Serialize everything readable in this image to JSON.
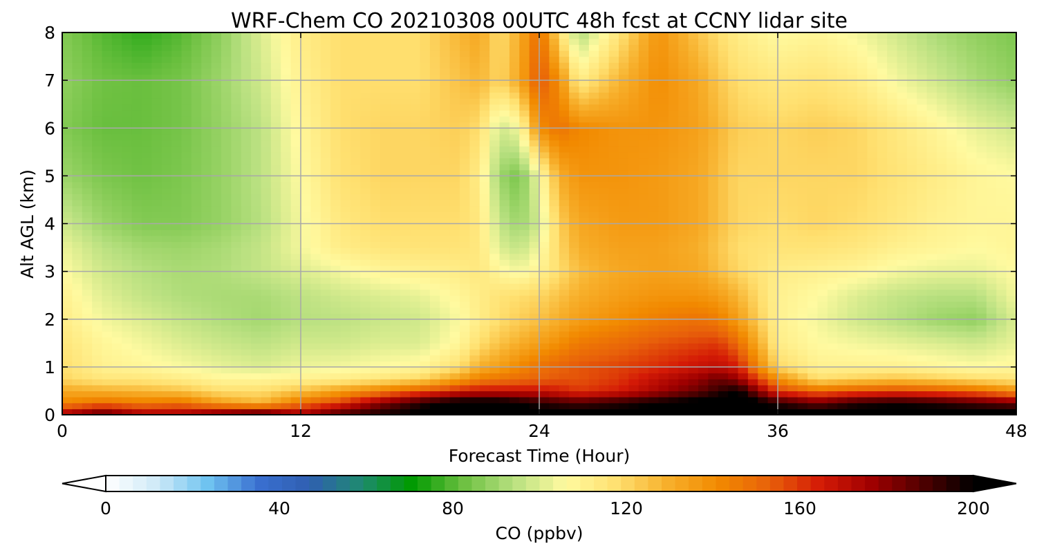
{
  "chart_data": {
    "type": "heatmap",
    "title": "WRF-Chem CO  20210308 00UTC 48h fcst at CCNY lidar site",
    "xlabel": "Forecast Time (Hour)",
    "ylabel": "Alt AGL (km)",
    "xlim": [
      0,
      48
    ],
    "ylim": [
      0,
      8
    ],
    "x_ticks": [
      "0",
      "12",
      "24",
      "36",
      "48"
    ],
    "y_ticks": [
      "0",
      "1",
      "2",
      "3",
      "4",
      "5",
      "6",
      "7",
      "8"
    ],
    "grid": true,
    "colorbar": {
      "label": "CO  (ppbv)",
      "range": [
        0,
        200
      ],
      "ticks": [
        "0",
        "40",
        "80",
        "120",
        "160",
        "200"
      ],
      "extend": "both",
      "colormap": [
        "#ffffff",
        "#cfeaf7",
        "#6ec3f0",
        "#3a6fd0",
        "#2f5fb0",
        "#1f8a70",
        "#009a00",
        "#6cc040",
        "#b8e080",
        "#fffaa0",
        "#ffe070",
        "#f7b02c",
        "#f28a00",
        "#e8610a",
        "#d41a06",
        "#a00000",
        "#500000",
        "#000000"
      ]
    },
    "x": [
      0,
      2,
      4,
      6,
      8,
      10,
      12,
      14,
      16,
      18,
      20,
      21,
      22,
      23,
      24,
      25,
      26,
      28,
      30,
      32,
      33,
      34,
      36,
      38,
      40,
      42,
      44,
      46,
      48
    ],
    "y": [
      0,
      0.25,
      0.5,
      0.75,
      1,
      1.5,
      2,
      2.5,
      3,
      3.5,
      4,
      5,
      6,
      7,
      8
    ],
    "values": [
      [
        178,
        192,
        178,
        178,
        190,
        198,
        178,
        192,
        198,
        202,
        210,
        212,
        210,
        205,
        205,
        205,
        205,
        202,
        205,
        205,
        210,
        210,
        205,
        205,
        205,
        205,
        205,
        205,
        205
      ],
      [
        142,
        148,
        145,
        148,
        135,
        128,
        148,
        160,
        180,
        195,
        205,
        205,
        205,
        200,
        195,
        192,
        190,
        195,
        200,
        205,
        210,
        210,
        195,
        185,
        195,
        198,
        195,
        190,
        185
      ],
      [
        132,
        130,
        128,
        125,
        118,
        118,
        125,
        135,
        145,
        155,
        165,
        168,
        168,
        168,
        168,
        165,
        160,
        165,
        175,
        185,
        192,
        200,
        160,
        150,
        155,
        158,
        155,
        150,
        140
      ],
      [
        120,
        115,
        115,
        112,
        108,
        108,
        110,
        112,
        115,
        120,
        135,
        145,
        148,
        150,
        152,
        155,
        155,
        160,
        170,
        178,
        185,
        178,
        140,
        118,
        122,
        125,
        122,
        118,
        115
      ],
      [
        118,
        110,
        108,
        105,
        102,
        100,
        103,
        104,
        106,
        108,
        118,
        130,
        135,
        142,
        148,
        152,
        155,
        158,
        162,
        168,
        170,
        165,
        120,
        110,
        110,
        110,
        108,
        106,
        108
      ],
      [
        115,
        108,
        104,
        100,
        97,
        95,
        98,
        98,
        100,
        100,
        108,
        118,
        125,
        130,
        135,
        140,
        146,
        150,
        155,
        158,
        160,
        150,
        112,
        106,
        104,
        102,
        100,
        98,
        102
      ],
      [
        112,
        104,
        100,
        96,
        93,
        91,
        94,
        95,
        97,
        98,
        105,
        112,
        118,
        122,
        125,
        130,
        135,
        140,
        145,
        148,
        145,
        135,
        110,
        104,
        98,
        94,
        90,
        88,
        100
      ],
      [
        110,
        101,
        96,
        93,
        92,
        92,
        95,
        98,
        100,
        102,
        108,
        112,
        116,
        118,
        120,
        125,
        130,
        135,
        138,
        138,
        135,
        128,
        110,
        106,
        100,
        96,
        94,
        94,
        104
      ],
      [
        106,
        98,
        94,
        92,
        93,
        96,
        100,
        104,
        108,
        110,
        112,
        114,
        108,
        104,
        110,
        118,
        126,
        132,
        134,
        132,
        126,
        120,
        112,
        110,
        108,
        104,
        102,
        102,
        106
      ],
      [
        103,
        95,
        91,
        90,
        92,
        96,
        104,
        112,
        115,
        116,
        116,
        114,
        100,
        96,
        104,
        120,
        130,
        134,
        134,
        130,
        124,
        118,
        116,
        116,
        114,
        110,
        108,
        106,
        108
      ],
      [
        98,
        90,
        86,
        86,
        89,
        94,
        104,
        114,
        118,
        118,
        118,
        114,
        96,
        90,
        98,
        122,
        132,
        136,
        136,
        132,
        126,
        120,
        118,
        120,
        118,
        114,
        110,
        108,
        108
      ],
      [
        90,
        85,
        83,
        85,
        89,
        95,
        106,
        117,
        120,
        120,
        120,
        112,
        90,
        84,
        104,
        130,
        138,
        138,
        136,
        132,
        126,
        120,
        120,
        120,
        120,
        116,
        112,
        108,
        106
      ],
      [
        86,
        82,
        82,
        84,
        89,
        95,
        108,
        118,
        120,
        120,
        122,
        118,
        98,
        104,
        140,
        148,
        142,
        138,
        138,
        134,
        128,
        122,
        120,
        122,
        120,
        114,
        108,
        102,
        98
      ],
      [
        88,
        83,
        82,
        84,
        90,
        98,
        110,
        118,
        118,
        118,
        125,
        128,
        120,
        132,
        155,
        140,
        112,
        128,
        140,
        132,
        124,
        118,
        114,
        116,
        112,
        104,
        98,
        92,
        88
      ],
      [
        86,
        80,
        76,
        80,
        88,
        100,
        112,
        118,
        118,
        118,
        128,
        132,
        118,
        130,
        150,
        118,
        92,
        115,
        138,
        124,
        118,
        112,
        106,
        108,
        104,
        98,
        92,
        88,
        85
      ]
    ]
  }
}
